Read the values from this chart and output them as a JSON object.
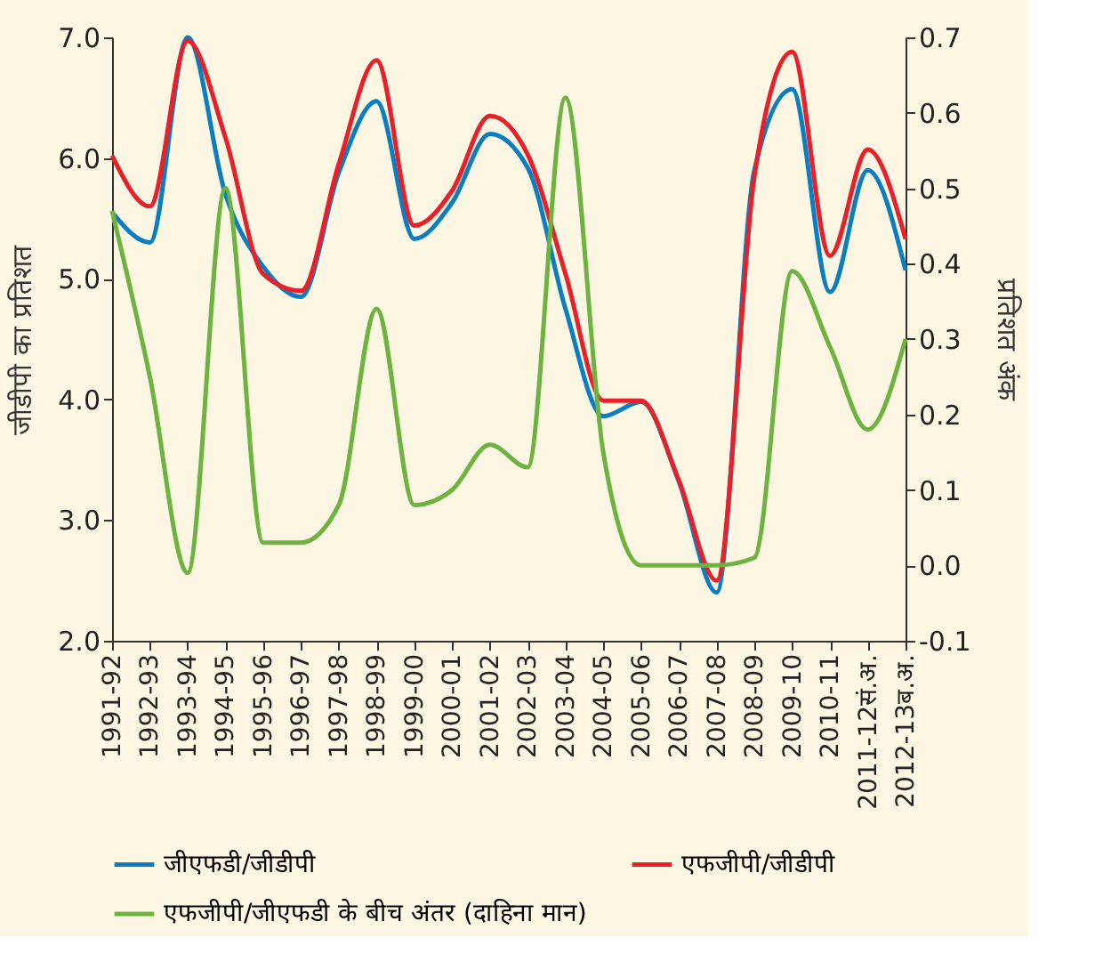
{
  "chart_data": {
    "type": "line",
    "categories": [
      "1991-92",
      "1992-93",
      "1993-94",
      "1994-95",
      "1995-96",
      "1996-97",
      "1997-98",
      "1998-99",
      "1999-00",
      "2000-01",
      "2001-02",
      "2002-03",
      "2003-04",
      "2004-05",
      "2005-06",
      "2006-07",
      "2007-08",
      "2008-09",
      "2009-10",
      "2010-11",
      "2011-12सं.अ.",
      "2012-13ब.अ."
    ],
    "series": [
      {
        "name": "जीएफडी/जीडीपी",
        "color": "#0a7ec2",
        "values": [
          5.55,
          5.3,
          7.0,
          5.7,
          5.1,
          4.85,
          5.88,
          6.47,
          5.33,
          5.63,
          6.2,
          5.92,
          4.75,
          3.86,
          3.98,
          3.32,
          2.4,
          5.9,
          6.57,
          4.89,
          5.9,
          5.07
        ]
      },
      {
        "name": "एफजीपी/जीडीपी",
        "color": "#e8202a",
        "values": [
          6.02,
          5.6,
          6.97,
          6.17,
          5.04,
          4.9,
          5.95,
          6.81,
          5.44,
          5.73,
          6.35,
          6.03,
          5.04,
          3.99,
          3.99,
          3.33,
          2.5,
          5.85,
          6.88,
          5.19,
          6.07,
          5.33
        ]
      },
      {
        "name": "एफजीपी/जीएफडी के बीच अंतर (दाहिना मान)",
        "color": "#6db33f",
        "axis": "y2",
        "values": [
          0.47,
          0.25,
          -0.01,
          0.5,
          0.03,
          0.03,
          0.08,
          0.34,
          0.08,
          0.1,
          0.16,
          0.13,
          0.62,
          0.15,
          0.0,
          0.0,
          0.0,
          0.01,
          0.39,
          0.29,
          0.18,
          0.3
        ]
      }
    ],
    "ylabel": "जीडीपी का प्रतिशत",
    "y2label": "प्रतिशत अंक",
    "ylim": [
      2,
      7
    ],
    "yticks": [
      {
        "value": 2,
        "label": "2.0"
      },
      {
        "value": 3,
        "label": "3.0"
      },
      {
        "value": 4,
        "label": "4.0"
      },
      {
        "value": 5,
        "label": "5.0"
      },
      {
        "value": 6,
        "label": "6.0"
      },
      {
        "value": 7,
        "label": "7.0"
      }
    ],
    "y2lim": [
      -0.1,
      0.7
    ],
    "y2ticks": [
      -0.1,
      {
        "value": 0,
        "label": "0.0"
      },
      0.1,
      0.2,
      0.3,
      0.4,
      0.5,
      0.6,
      0.7
    ],
    "legend": "bottom",
    "grid": false,
    "marker": "none",
    "line_style": "solid"
  }
}
